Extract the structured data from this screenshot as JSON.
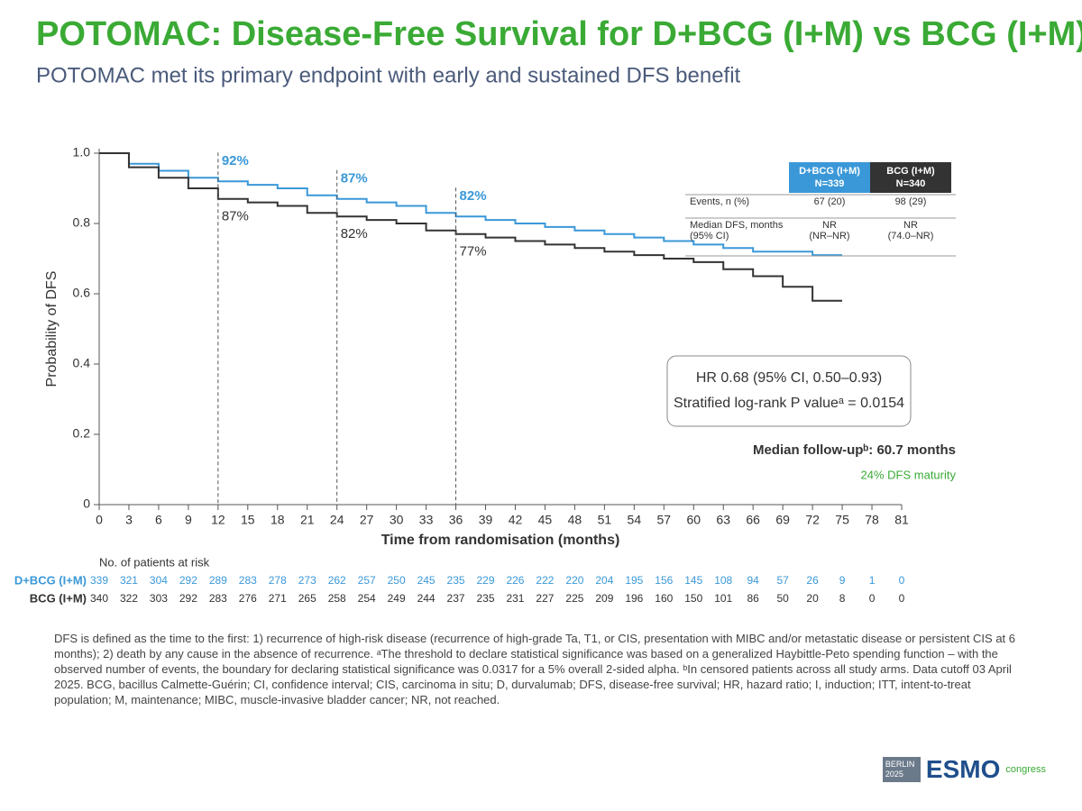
{
  "chart_data": {
    "type": "line",
    "step": "post",
    "title": "POTOMAC: Disease-Free Survival for D+BCG (I+M) vs BCG (I+M) – ITT",
    "subtitle": "POTOMAC met its primary endpoint with early and sustained DFS benefit",
    "xlabel": "Time from randomisation (months)",
    "ylabel": "Probability of DFS",
    "x": [
      0,
      3,
      6,
      9,
      12,
      15,
      18,
      21,
      24,
      27,
      30,
      33,
      36,
      39,
      42,
      45,
      48,
      51,
      54,
      57,
      60,
      63,
      66,
      69,
      72,
      75
    ],
    "series": [
      {
        "name": "D+BCG (I+M)",
        "color": "#3a98d8",
        "values": [
          1.0,
          0.97,
          0.95,
          0.93,
          0.92,
          0.91,
          0.9,
          0.88,
          0.87,
          0.86,
          0.85,
          0.83,
          0.82,
          0.81,
          0.8,
          0.79,
          0.78,
          0.77,
          0.76,
          0.75,
          0.74,
          0.73,
          0.72,
          0.72,
          0.71,
          0.71
        ]
      },
      {
        "name": "BCG (I+M)",
        "color": "#333333",
        "values": [
          1.0,
          0.96,
          0.93,
          0.9,
          0.87,
          0.86,
          0.85,
          0.83,
          0.82,
          0.81,
          0.8,
          0.78,
          0.77,
          0.76,
          0.75,
          0.74,
          0.73,
          0.72,
          0.71,
          0.7,
          0.69,
          0.67,
          0.65,
          0.62,
          0.58,
          0.58
        ]
      }
    ],
    "xlim": [
      0,
      81
    ],
    "xticks": [
      0,
      3,
      6,
      9,
      12,
      15,
      18,
      21,
      24,
      27,
      30,
      33,
      36,
      39,
      42,
      45,
      48,
      51,
      54,
      57,
      60,
      63,
      66,
      69,
      72,
      75,
      78,
      81
    ],
    "ylim": [
      0,
      1
    ],
    "yticks": [
      0,
      0.2,
      0.4,
      0.6,
      0.8,
      {
        "value": 1,
        "label": "1.0"
      }
    ],
    "reference_x": [
      12,
      24,
      36
    ],
    "annotations_series0": [
      "92%",
      "87%",
      "82%"
    ],
    "annotations_series1": [
      "87%",
      "82%",
      "77%"
    ],
    "hr_box": [
      "HR 0.68 (95% CI, 0.50–0.93)",
      "Stratified log-rank P valueᵃ = 0.0154"
    ],
    "follow_up": "Median follow-upᵇ: 60.7 months",
    "maturity": "24% DFS maturity"
  },
  "events_table": {
    "columns": [
      [
        "D+BCG (I+M)",
        "N=339"
      ],
      [
        "BCG (I+M)",
        "N=340"
      ]
    ],
    "rows": [
      {
        "label": [
          "Events, n (%)"
        ],
        "cells": [
          [
            "67 (20)"
          ],
          [
            "98 (29)"
          ]
        ]
      },
      {
        "label": [
          "Median DFS, months",
          "(95% CI)"
        ],
        "cells": [
          [
            "NR",
            "(NR–NR)"
          ],
          [
            "NR",
            "(74.0–NR)"
          ]
        ]
      }
    ]
  },
  "at_risk": {
    "title": "No. of patients at risk",
    "rows": [
      {
        "name": "D+BCG (I+M)",
        "values": [
          339,
          321,
          304,
          292,
          289,
          283,
          278,
          273,
          262,
          257,
          250,
          245,
          235,
          229,
          226,
          222,
          220,
          204,
          195,
          156,
          145,
          108,
          94,
          57,
          26,
          9,
          1,
          0
        ]
      },
      {
        "name": "BCG (I+M)",
        "values": [
          340,
          322,
          303,
          292,
          283,
          276,
          271,
          265,
          258,
          254,
          249,
          244,
          237,
          235,
          231,
          227,
          225,
          209,
          196,
          160,
          150,
          101,
          86,
          50,
          20,
          8,
          0,
          0
        ]
      }
    ]
  },
  "footnote": "DFS is defined as the time to the first: 1) recurrence of high-risk disease (recurrence of high-grade Ta, T1, or CIS, presentation with MIBC and/or metastatic disease or persistent CIS at 6 months); 2) death by any cause in the absence of recurrence. ᵃThe threshold to declare statistical significance was based on a generalized Haybittle-Peto spending function – with the observed number of events, the boundary for declaring statistical significance was 0.0317 for a 5% overall 2-sided alpha. ᵇIn censored patients across all study arms. Data cutoff 03 April 2025. BCG, bacillus Calmette-Guérin; CI, confidence interval; CIS, carcinoma in situ; D, durvalumab; DFS, disease-free survival; HR, hazard ratio; I, induction; ITT, intent-to-treat population; M, maintenance; MIBC, muscle-invasive bladder cancer; NR, not reached.",
  "logo": {
    "place": "BERLIN 2025",
    "name": "ESMO",
    "suffix": "congress"
  }
}
